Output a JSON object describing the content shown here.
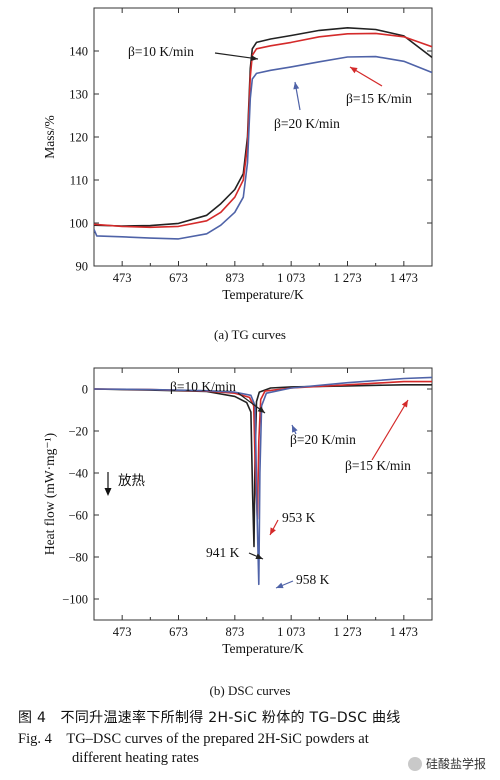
{
  "chart_data": [
    {
      "type": "line",
      "xlabel": "Temperature/K",
      "ylabel": "Mass/%",
      "xlim": [
        373,
        1573
      ],
      "ylim": [
        90,
        150
      ],
      "x_ticks": [
        473,
        673,
        873,
        1073,
        1273,
        1473
      ],
      "x_tick_labels": [
        "473",
        "673",
        "873",
        "1 073",
        "1 273",
        "1 473"
      ],
      "y_ticks": [
        90,
        100,
        110,
        120,
        130,
        140
      ],
      "y_tick_labels": [
        "90",
        "100",
        "110",
        "120",
        "130",
        "140"
      ],
      "series": [
        {
          "name": "β=10 K/min",
          "color": "#222222",
          "x": [
            373,
            473,
            573,
            673,
            773,
            823,
            873,
            903,
            918,
            928,
            935,
            950,
            1000,
            1073,
            1173,
            1273,
            1373,
            1473,
            1573
          ],
          "y": [
            99.5,
            99.3,
            99.4,
            99.9,
            101.8,
            104.5,
            107.8,
            111.5,
            120,
            136,
            140.5,
            142,
            142.8,
            143.6,
            144.8,
            145.4,
            145.0,
            143.5,
            138.5
          ]
        },
        {
          "name": "β=15 K/min",
          "color": "#d42a2a",
          "x": [
            373,
            473,
            573,
            673,
            773,
            823,
            873,
            903,
            918,
            928,
            935,
            950,
            1000,
            1073,
            1173,
            1273,
            1373,
            1473,
            1573
          ],
          "y": [
            99.7,
            99.2,
            99.0,
            99.2,
            100.5,
            102.5,
            106.0,
            110.0,
            118,
            134,
            139,
            140.5,
            141.2,
            142.0,
            143.3,
            144.0,
            144.1,
            143.3,
            141.0
          ]
        },
        {
          "name": "β=20 K/min",
          "color": "#4f63a8",
          "x": [
            373,
            383,
            473,
            573,
            673,
            773,
            823,
            873,
            903,
            918,
            928,
            935,
            950,
            1000,
            1073,
            1173,
            1273,
            1373,
            1473,
            1573
          ],
          "y": [
            98.5,
            97.0,
            96.8,
            96.5,
            96.3,
            97.5,
            99.5,
            102.5,
            106.0,
            114,
            129,
            133.5,
            134.8,
            135.5,
            136.3,
            137.5,
            138.6,
            138.7,
            137.6,
            135.0
          ]
        }
      ],
      "annotations": [
        {
          "text": "β=10 K/min",
          "target_series": "β=10 K/min"
        },
        {
          "text": "β=15 K/min",
          "target_series": "β=15 K/min"
        },
        {
          "text": "β=20 K/min",
          "target_series": "β=20 K/min"
        }
      ],
      "caption": "(a) TG curves"
    },
    {
      "type": "line",
      "xlabel": "Temperature/K",
      "ylabel": "Heat flow (mW·mg⁻¹)",
      "xlim": [
        373,
        1573
      ],
      "ylim": [
        -110,
        10
      ],
      "x_ticks": [
        473,
        673,
        873,
        1073,
        1273,
        1473
      ],
      "x_tick_labels": [
        "473",
        "673",
        "873",
        "1 073",
        "1 273",
        "1 473"
      ],
      "y_ticks": [
        -100,
        -80,
        -60,
        -40,
        -20,
        0
      ],
      "y_tick_labels": [
        "−100",
        "−80",
        "−60",
        "−40",
        "−20",
        "0"
      ],
      "series": [
        {
          "name": "β=10 K/min",
          "color": "#222222",
          "x": [
            373,
            573,
            773,
            873,
            915,
            930,
            936,
            941,
            944,
            950,
            960,
            1000,
            1073,
            1273,
            1473,
            1573
          ],
          "y": [
            0,
            -0.5,
            -1.2,
            -3.5,
            -6.5,
            -11,
            -50,
            -75,
            -40,
            -6,
            -1.5,
            0.5,
            1.0,
            1.5,
            2.0,
            2.0
          ]
        },
        {
          "name": "β=15 K/min",
          "color": "#d42a2a",
          "x": [
            373,
            573,
            773,
            873,
            925,
            940,
            946,
            953,
            958,
            965,
            980,
            1073,
            1273,
            1473,
            1573
          ],
          "y": [
            0,
            -0.3,
            -1.0,
            -2.0,
            -4.0,
            -8,
            -40,
            -62,
            -25,
            -5,
            -1,
            0.5,
            2.0,
            3.5,
            3.5
          ]
        },
        {
          "name": "β=20 K/min",
          "color": "#4f63a8",
          "x": [
            373,
            573,
            773,
            873,
            930,
            945,
            952,
            958,
            962,
            968,
            985,
            1073,
            1273,
            1473,
            1573
          ],
          "y": [
            0,
            -0.3,
            -0.8,
            -1.5,
            -3.0,
            -8,
            -60,
            -93,
            -40,
            -8,
            -2,
            0.5,
            3.0,
            5.0,
            5.5
          ]
        }
      ],
      "annotations": [
        {
          "text": "β=10 K/min",
          "target_series": "β=10 K/min"
        },
        {
          "text": "β=20 K/min",
          "target_series": "β=20 K/min"
        },
        {
          "text": "β=15 K/min",
          "target_series": "β=15 K/min"
        },
        {
          "text": "953 K",
          "target_series": "β=15 K/min"
        },
        {
          "text": "941 K",
          "target_series": "β=10 K/min"
        },
        {
          "text": "958 K",
          "target_series": "β=20 K/min"
        },
        {
          "text": "放热"
        }
      ],
      "caption": "(b) DSC curves"
    }
  ],
  "captions": {
    "cn": "图 4　不同升温速率下所制得 2H-SiC 粉体的 TG–DSC 曲线",
    "en_line1": "Fig. 4　TG–DSC curves of the prepared 2H-SiC powders at",
    "en_line2": "different heating rates"
  },
  "watermark": "硅酸盐学报"
}
